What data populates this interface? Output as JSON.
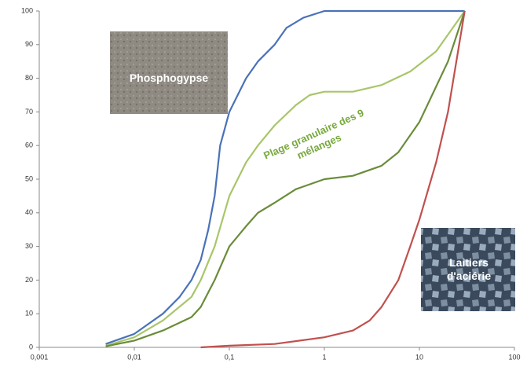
{
  "chart_data": {
    "type": "line",
    "xscale": "log",
    "grid": false,
    "xlim": [
      0.001,
      100
    ],
    "ylim": [
      0,
      100
    ],
    "xticks": [
      {
        "value": 0.001,
        "label": "0,001"
      },
      {
        "value": 0.01,
        "label": "0,01"
      },
      {
        "value": 0.1,
        "label": "0,1"
      },
      1,
      10,
      100
    ],
    "yticks": [
      0,
      10,
      20,
      30,
      40,
      50,
      60,
      70,
      80,
      90,
      100
    ],
    "series": [
      {
        "color": "#4a72b8",
        "x": [
          0.005,
          0.01,
          0.02,
          0.03,
          0.04,
          0.05,
          0.06,
          0.07,
          0.08,
          0.1,
          0.15,
          0.2,
          0.3,
          0.4,
          0.6,
          1,
          2,
          10,
          30
        ],
        "values": [
          1,
          4,
          10,
          15,
          20,
          26,
          35,
          45,
          60,
          70,
          80,
          85,
          90,
          95,
          98,
          100,
          100,
          100,
          100
        ]
      },
      {
        "color": "#a8c66a",
        "x": [
          0.005,
          0.01,
          0.02,
          0.04,
          0.05,
          0.07,
          0.1,
          0.15,
          0.2,
          0.3,
          0.5,
          0.7,
          1,
          2,
          4,
          8,
          15,
          30
        ],
        "values": [
          0.5,
          3,
          8,
          15,
          20,
          30,
          45,
          55,
          60,
          66,
          72,
          75,
          76,
          76,
          78,
          82,
          88,
          100
        ]
      },
      {
        "color": "#6a8c3a",
        "x": [
          0.005,
          0.01,
          0.02,
          0.04,
          0.05,
          0.07,
          0.1,
          0.15,
          0.2,
          0.3,
          0.5,
          1,
          2,
          4,
          6,
          10,
          20,
          30
        ],
        "values": [
          0.3,
          2,
          5,
          9,
          12,
          20,
          30,
          36,
          40,
          43,
          47,
          50,
          51,
          54,
          58,
          67,
          85,
          100
        ]
      },
      {
        "color": "#c0504d",
        "x": [
          0.05,
          0.1,
          0.3,
          1,
          2,
          3,
          4,
          6,
          8,
          10,
          15,
          20,
          30
        ],
        "values": [
          0,
          0.5,
          1,
          3,
          5,
          8,
          12,
          20,
          30,
          38,
          55,
          70,
          100
        ]
      }
    ],
    "annotations": [
      {
        "lines": [
          "Phosphogypse"
        ]
      },
      {
        "lines": [
          "Plage granulaire des 9",
          "mélanges"
        ]
      },
      {
        "lines": [
          "Laitiers",
          "d'aciérie"
        ]
      }
    ]
  }
}
